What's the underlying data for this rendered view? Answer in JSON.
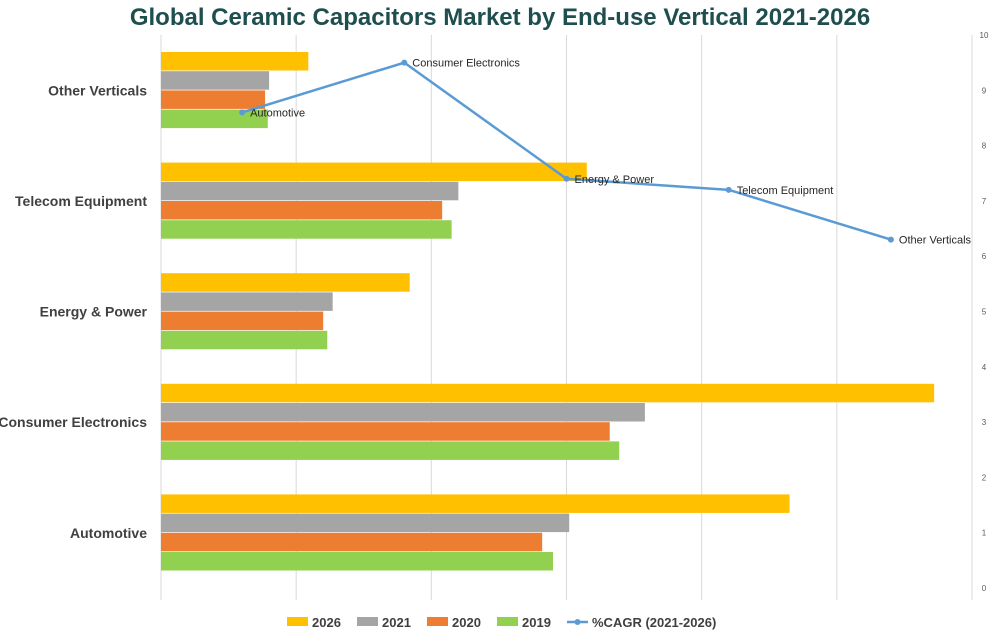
{
  "chart_data": {
    "type": "bar",
    "orientation": "horizontal",
    "title": "Global Ceramic Capacitors Market by End-use Vertical 2021-2026",
    "categories": [
      "Automotive",
      "Consumer Electronics",
      "Energy & Power",
      "Telecom Equipment",
      "Other Verticals"
    ],
    "xlim": [
      0,
      6
    ],
    "series": [
      {
        "name": "2026",
        "color": "#FFC000",
        "values": [
          4.65,
          5.72,
          1.84,
          3.15,
          1.09
        ]
      },
      {
        "name": "2021",
        "color": "#A5A5A5",
        "values": [
          3.02,
          3.58,
          1.27,
          2.2,
          0.8
        ]
      },
      {
        "name": "2020",
        "color": "#ED7D31",
        "values": [
          2.82,
          3.32,
          1.2,
          2.08,
          0.77
        ]
      },
      {
        "name": "2019",
        "color": "#92D050",
        "values": [
          2.9,
          3.39,
          1.23,
          2.15,
          0.79
        ]
      }
    ],
    "line_series": {
      "name": "%CAGR (2021-2026)",
      "color": "#5B9BD5",
      "axis": "secondary",
      "ylim": [
        0,
        10
      ],
      "ticks": [
        0,
        1,
        2,
        3,
        4,
        5,
        6,
        7,
        8,
        9,
        10
      ],
      "points": [
        {
          "label": "Automotive",
          "value": 8.6
        },
        {
          "label": "Consumer Electronics",
          "value": 9.5
        },
        {
          "label": "Energy & Power",
          "value": 7.4
        },
        {
          "label": "Telecom Equipment",
          "value": 7.2
        },
        {
          "label": "Other Verticals",
          "value": 6.3
        }
      ]
    },
    "legend": {
      "position": "bottom",
      "entries": [
        "2026",
        "2021",
        "2020",
        "2019",
        "%CAGR (2021-2026)"
      ]
    },
    "grid": true
  }
}
